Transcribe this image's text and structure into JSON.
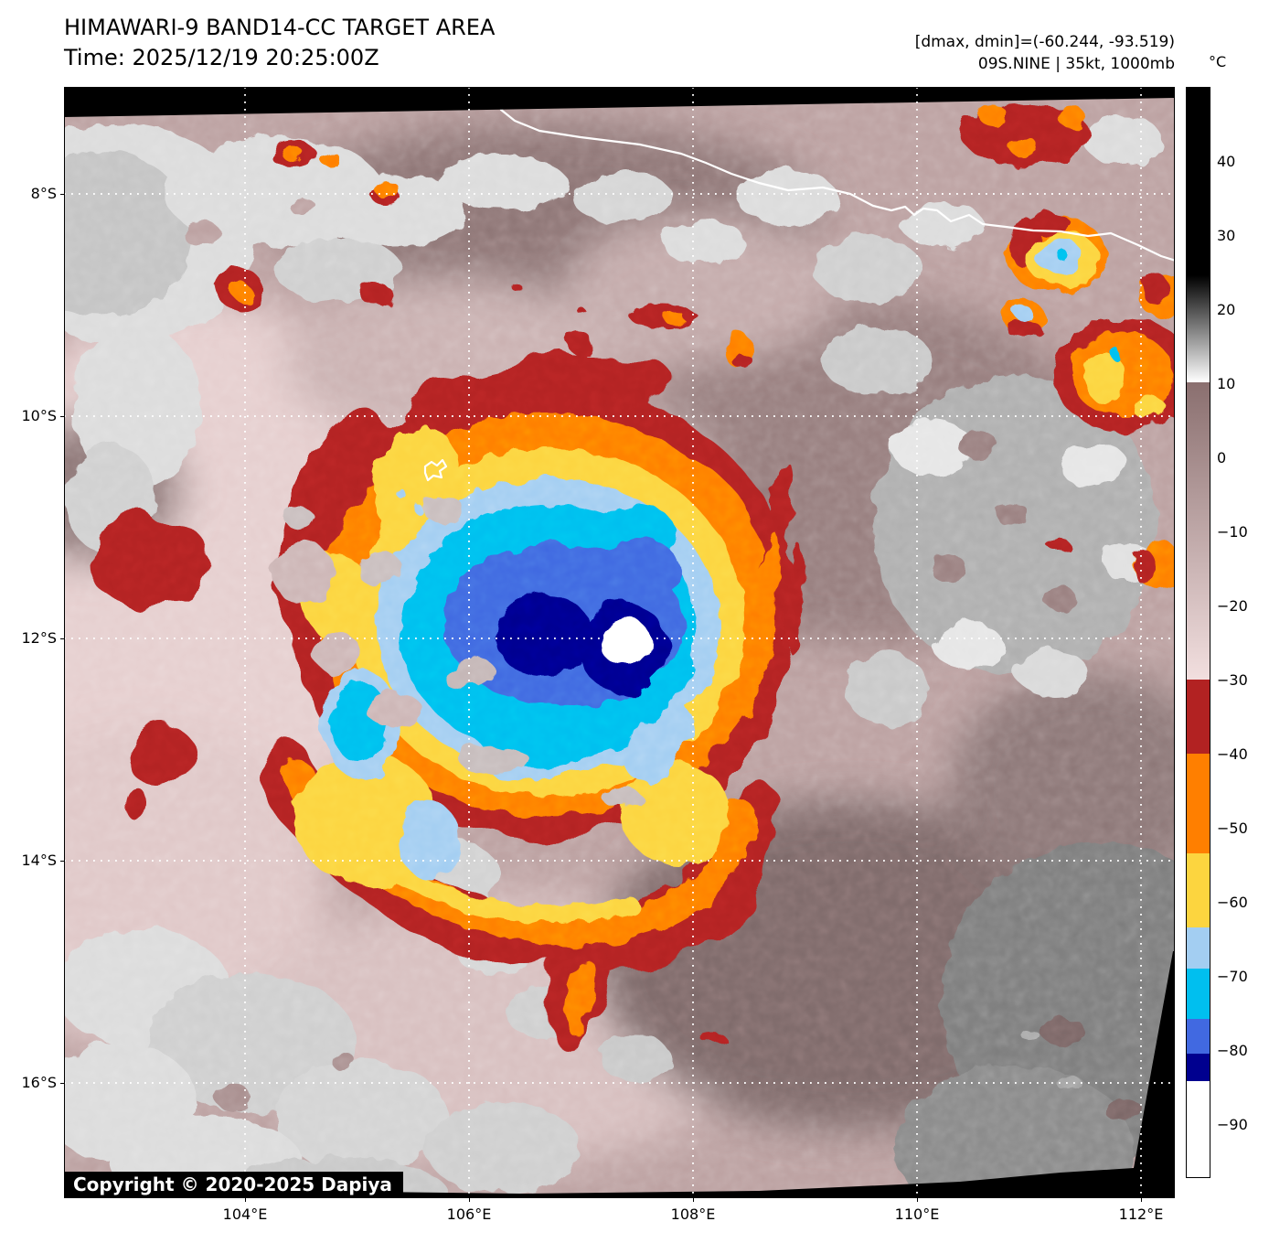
{
  "header": {
    "title": "HIMAWARI-9 BAND14-CC TARGET AREA",
    "subtitle": "Time: 2025/12/19 20:25:00Z",
    "annotation_line1": "[dmax, dmin]=(-60.244, -93.519)",
    "annotation_line2": "09S.NINE | 35kt, 1000mb"
  },
  "map": {
    "copyright": "Copyright © 2020-2025 Dapiya",
    "satellite": "HIMAWARI-9",
    "band": "BAND14-CC",
    "storm": "09S.NINE",
    "intensity": "35kt, 1000mb",
    "dmax_c": -60.244,
    "dmin_c": -93.519
  },
  "axes": {
    "x_ticks": [
      "104°E",
      "106°E",
      "108°E",
      "110°E",
      "112°E"
    ],
    "y_ticks": [
      "8°S",
      "10°S",
      "12°S",
      "14°S",
      "16°S"
    ]
  },
  "colorbar": {
    "unit": "°C",
    "ticks": [
      "40",
      "30",
      "20",
      "10",
      "0",
      "−10",
      "−20",
      "−30",
      "−40",
      "−50",
      "−60",
      "−70",
      "−80",
      "−90"
    ],
    "range_c": [
      50,
      -97
    ],
    "segments": [
      {
        "css": "#000000",
        "height_pct": 17.18,
        "from_c": 50,
        "to_c": 30
      },
      {
        "css": "linear-gradient(#000000,#ffffff)",
        "height_pct": 9.89,
        "from_c": 30,
        "to_c": 10
      },
      {
        "css": "linear-gradient(#8a6f6f,#f2dfdf)",
        "height_pct": 27.24,
        "from_c": 10,
        "to_c": -30
      },
      {
        "css": "#b22222",
        "height_pct": 6.79,
        "from_c": -30,
        "to_c": -40
      },
      {
        "css": "#ff7f00",
        "height_pct": 9.14,
        "from_c": -40,
        "to_c": -54
      },
      {
        "css": "#fcd53f",
        "height_pct": 6.87,
        "from_c": -54,
        "to_c": -64
      },
      {
        "css": "#a3cef2",
        "height_pct": 3.77,
        "from_c": -64,
        "to_c": -69
      },
      {
        "css": "#00bfef",
        "height_pct": 4.61,
        "from_c": -69,
        "to_c": -76
      },
      {
        "css": "#4169e1",
        "height_pct": 3.19,
        "from_c": -76,
        "to_c": -81
      },
      {
        "css": "#00008f",
        "height_pct": 2.51,
        "from_c": -81,
        "to_c": -85
      },
      {
        "css": "#ffffff",
        "height_pct": 8.8,
        "from_c": -85,
        "to_c": -97
      }
    ]
  },
  "palette": {
    "storm_darkred": "#b22222",
    "storm_orange": "#ff7f00",
    "storm_gold": "#fcd53f",
    "storm_lightblue": "#a3cef2",
    "storm_cyan": "#00bfef",
    "storm_royal": "#4169e1",
    "storm_navy": "#00008f",
    "bg_mauve": "#bca1a1",
    "bg_pale": "#e6cfcf",
    "bg_dark": "#8a7272",
    "gray_light": "#dcdcdc",
    "gray_mid": "#afafaf",
    "gray_dark": "#7e7e7e"
  }
}
